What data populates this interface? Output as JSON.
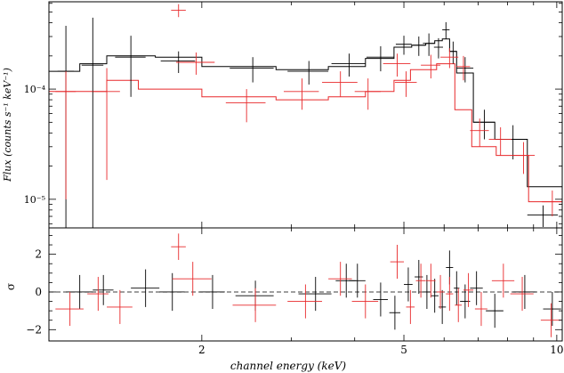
{
  "chart_data": {
    "type": "scatter",
    "x_scale": "log",
    "xlabel": "channel energy (keV)",
    "x_ticks": [
      {
        "value": 2,
        "label": "2"
      },
      {
        "value": 5,
        "label": "5"
      },
      {
        "value": 10,
        "label": "10"
      }
    ],
    "xlim": [
      1.0,
      10.25
    ],
    "panels": [
      {
        "id": "spectrum",
        "y_scale": "log",
        "ylabel": "Flux (counts s⁻¹ keV⁻¹)",
        "ylim": [
          5.5e-06,
          0.00062
        ],
        "y_ticks": [
          {
            "value": 0.0001,
            "label": "10⁻⁴"
          },
          {
            "value": 1e-05,
            "label": "10⁻⁵"
          }
        ],
        "series": [
          {
            "color": "#000000",
            "points": [
              {
                "x": 1.08,
                "y": 0.000145,
                "xerr": 0.04,
                "yerr": [
                  0.00014,
                  0.00023
                ]
              },
              {
                "x": 1.22,
                "y": 0.000165,
                "xerr": 0.06,
                "yerr": [
                  0.00016,
                  0.00028
                ]
              },
              {
                "x": 1.45,
                "y": 0.000195,
                "xerr": 0.1,
                "yerr": [
                  0.00011,
                  0.00011
                ]
              },
              {
                "x": 1.8,
                "y": 0.00018,
                "xerr": 0.14,
                "yerr": [
                  4e-05,
                  4e-05
                ]
              },
              {
                "x": 2.52,
                "y": 0.000155,
                "xerr": 0.25,
                "yerr": [
                  4e-05,
                  4e-05
                ]
              },
              {
                "x": 3.25,
                "y": 0.000145,
                "xerr": 0.3,
                "yerr": [
                  3.5e-05,
                  3.5e-05
                ]
              },
              {
                "x": 3.9,
                "y": 0.00017,
                "xerr": 0.3,
                "yerr": [
                  4e-05,
                  4e-05
                ]
              },
              {
                "x": 4.5,
                "y": 0.000195,
                "xerr": 0.28,
                "yerr": [
                  5e-05,
                  5e-05
                ]
              },
              {
                "x": 5.0,
                "y": 0.000255,
                "xerr": 0.18,
                "yerr": [
                  5e-05,
                  5e-05
                ]
              },
              {
                "x": 5.35,
                "y": 0.00025,
                "xerr": 0.16,
                "yerr": [
                  5e-05,
                  5e-05
                ]
              },
              {
                "x": 5.6,
                "y": 0.00026,
                "xerr": 0.15,
                "yerr": [
                  6e-05,
                  6e-05
                ]
              },
              {
                "x": 5.85,
                "y": 0.00024,
                "xerr": 0.12,
                "yerr": [
                  5e-05,
                  5e-05
                ]
              },
              {
                "x": 6.05,
                "y": 0.000345,
                "xerr": 0.1,
                "yerr": [
                  6e-05,
                  6e-05
                ]
              },
              {
                "x": 6.25,
                "y": 0.00022,
                "xerr": 0.1,
                "yerr": [
                  5e-05,
                  5e-05
                ]
              },
              {
                "x": 6.6,
                "y": 0.000155,
                "xerr": 0.25,
                "yerr": [
                  4e-05,
                  4e-05
                ]
              },
              {
                "x": 7.2,
                "y": 5e-05,
                "xerr": 0.35,
                "yerr": [
                  1.5e-05,
                  1.5e-05
                ]
              },
              {
                "x": 8.2,
                "y": 3.5e-05,
                "xerr": 0.55,
                "yerr": [
                  1.2e-05,
                  1.2e-05
                ]
              },
              {
                "x": 9.4,
                "y": 7.2e-06,
                "xerr": 0.65,
                "yerr": [
                  1.6e-06,
                  1.6e-06
                ]
              }
            ],
            "model_step": {
              "edges": [
                1.0,
                1.15,
                1.3,
                1.62,
                2.0,
                2.8,
                3.55,
                4.2,
                4.78,
                5.18,
                5.52,
                5.75,
                5.95,
                6.15,
                6.35,
                6.85,
                7.55,
                8.75,
                10.25
              ],
              "values": [
                0.000145,
                0.00017,
                0.0002,
                0.000195,
                0.00016,
                0.00015,
                0.00016,
                0.00019,
                0.00024,
                0.00025,
                0.00026,
                0.000275,
                0.000285,
                0.00022,
                0.00014,
                5e-05,
                3.5e-05,
                1.3e-05
              ]
            }
          },
          {
            "color": "#e8292b",
            "points": [
              {
                "x": 1.08,
                "y": 9.5e-05,
                "xerr": 0.05,
                "yerr": [
                  8.5e-05,
                  5e-05
                ]
              },
              {
                "x": 1.3,
                "y": 9.5e-05,
                "xerr": 0.08,
                "yerr": [
                  8e-05,
                  6e-05
                ]
              },
              {
                "x": 1.8,
                "y": 0.00052,
                "xerr": 0.06,
                "yerr": [
                  7e-05,
                  7e-05
                ]
              },
              {
                "x": 1.95,
                "y": 0.000175,
                "xerr": 0.17,
                "yerr": [
                  4e-05,
                  4e-05
                ]
              },
              {
                "x": 2.45,
                "y": 7.5e-05,
                "xerr": 0.22,
                "yerr": [
                  2.5e-05,
                  2.5e-05
                ]
              },
              {
                "x": 3.15,
                "y": 9.5e-05,
                "xerr": 0.25,
                "yerr": [
                  3e-05,
                  3e-05
                ]
              },
              {
                "x": 3.75,
                "y": 0.000115,
                "xerr": 0.3,
                "yerr": [
                  3e-05,
                  3e-05
                ]
              },
              {
                "x": 4.25,
                "y": 9.5e-05,
                "xerr": 0.25,
                "yerr": [
                  3e-05,
                  3e-05
                ]
              },
              {
                "x": 4.85,
                "y": 0.00017,
                "xerr": 0.3,
                "yerr": [
                  4e-05,
                  4e-05
                ]
              },
              {
                "x": 5.05,
                "y": 0.000115,
                "xerr": 0.25,
                "yerr": [
                  3e-05,
                  3e-05
                ]
              },
              {
                "x": 5.65,
                "y": 0.000165,
                "xerr": 0.25,
                "yerr": [
                  4e-05,
                  4e-05
                ]
              },
              {
                "x": 6.15,
                "y": 0.000195,
                "xerr": 0.25,
                "yerr": [
                  4e-05,
                  4e-05
                ]
              },
              {
                "x": 6.55,
                "y": 0.00016,
                "xerr": 0.2,
                "yerr": [
                  4e-05,
                  4e-05
                ]
              },
              {
                "x": 7.05,
                "y": 4.2e-05,
                "xerr": 0.3,
                "yerr": [
                  1.2e-05,
                  1.2e-05
                ]
              },
              {
                "x": 7.75,
                "y": 3.5e-05,
                "xerr": 0.4,
                "yerr": [
                  1e-05,
                  1e-05
                ]
              },
              {
                "x": 8.6,
                "y": 2.5e-05,
                "xerr": 0.45,
                "yerr": [
                  8e-06,
                  8e-06
                ]
              },
              {
                "x": 9.8,
                "y": 9.5e-06,
                "xerr": 0.45,
                "yerr": [
                  2.5e-06,
                  2.5e-06
                ]
              }
            ],
            "model_step": {
              "edges": [
                1.0,
                1.3,
                1.5,
                2.0,
                2.8,
                3.55,
                4.2,
                4.78,
                5.15,
                5.8,
                6.3,
                6.8,
                7.6,
                8.8,
                10.25
              ],
              "values": [
                9.5e-05,
                0.00012,
                0.0001,
                8.5e-05,
                8e-05,
                8.5e-05,
                9.5e-05,
                0.00012,
                0.00015,
                0.00017,
                6.5e-05,
                3e-05,
                2.5e-05,
                9.5e-06
              ]
            }
          }
        ]
      },
      {
        "id": "residuals",
        "y_scale": "linear",
        "ylabel": "σ",
        "ylim": [
          -2.6,
          3.4
        ],
        "y_ticks": [
          {
            "value": 2,
            "label": "2"
          },
          {
            "value": 0,
            "label": "0"
          },
          {
            "value": -2,
            "label": "−2"
          }
        ],
        "reference_line": 0,
        "series": [
          {
            "color": "#000000",
            "points": [
              {
                "x": 1.15,
                "y": 0.0,
                "xerr": 0.07,
                "yerr": 0.9
              },
              {
                "x": 1.28,
                "y": 0.1,
                "xerr": 0.06,
                "yerr": 0.8
              },
              {
                "x": 1.55,
                "y": 0.2,
                "xerr": 0.1,
                "yerr": 1.0
              },
              {
                "x": 1.75,
                "y": 0.0,
                "xerr": 0.1,
                "yerr": 1.0
              },
              {
                "x": 2.1,
                "y": 0.0,
                "xerr": 0.12,
                "yerr": 0.9
              },
              {
                "x": 2.55,
                "y": -0.2,
                "xerr": 0.22,
                "yerr": 0.8
              },
              {
                "x": 3.35,
                "y": -0.1,
                "xerr": 0.25,
                "yerr": 0.9
              },
              {
                "x": 3.85,
                "y": 0.6,
                "xerr": 0.18,
                "yerr": 0.9
              },
              {
                "x": 4.05,
                "y": 0.6,
                "xerr": 0.15,
                "yerr": 0.9
              },
              {
                "x": 4.5,
                "y": -0.4,
                "xerr": 0.15,
                "yerr": 0.9
              },
              {
                "x": 4.8,
                "y": -1.1,
                "xerr": 0.12,
                "yerr": 0.9
              },
              {
                "x": 5.1,
                "y": 0.4,
                "xerr": 0.1,
                "yerr": 0.9
              },
              {
                "x": 5.35,
                "y": 0.8,
                "xerr": 0.1,
                "yerr": 0.9
              },
              {
                "x": 5.55,
                "y": 0.0,
                "xerr": 0.1,
                "yerr": 0.9
              },
              {
                "x": 5.75,
                "y": -0.2,
                "xerr": 0.1,
                "yerr": 0.9
              },
              {
                "x": 5.95,
                "y": -0.8,
                "xerr": 0.1,
                "yerr": 0.9
              },
              {
                "x": 6.15,
                "y": 1.3,
                "xerr": 0.1,
                "yerr": 0.9
              },
              {
                "x": 6.35,
                "y": 0.2,
                "xerr": 0.08,
                "yerr": 0.9
              },
              {
                "x": 6.6,
                "y": -0.5,
                "xerr": 0.15,
                "yerr": 0.9
              },
              {
                "x": 6.95,
                "y": 0.2,
                "xerr": 0.2,
                "yerr": 0.9
              },
              {
                "x": 7.55,
                "y": -1.0,
                "xerr": 0.3,
                "yerr": 0.9
              },
              {
                "x": 8.65,
                "y": 0.0,
                "xerr": 0.45,
                "yerr": 0.9
              },
              {
                "x": 9.8,
                "y": -0.9,
                "xerr": 0.4,
                "yerr": 0.9
              }
            ]
          },
          {
            "color": "#e8292b",
            "points": [
              {
                "x": 1.1,
                "y": -0.9,
                "xerr": 0.07,
                "yerr": 0.9
              },
              {
                "x": 1.25,
                "y": -0.1,
                "xerr": 0.06,
                "yerr": 0.9
              },
              {
                "x": 1.38,
                "y": -0.8,
                "xerr": 0.08,
                "yerr": 0.9
              },
              {
                "x": 1.8,
                "y": 2.4,
                "xerr": 0.06,
                "yerr": 0.7
              },
              {
                "x": 1.92,
                "y": 0.7,
                "xerr": 0.17,
                "yerr": 0.9
              },
              {
                "x": 2.55,
                "y": -0.7,
                "xerr": 0.25,
                "yerr": 0.9
              },
              {
                "x": 3.2,
                "y": -0.5,
                "xerr": 0.25,
                "yerr": 0.9
              },
              {
                "x": 3.75,
                "y": 0.7,
                "xerr": 0.2,
                "yerr": 0.9
              },
              {
                "x": 4.2,
                "y": -0.5,
                "xerr": 0.25,
                "yerr": 0.9
              },
              {
                "x": 4.85,
                "y": 1.6,
                "xerr": 0.15,
                "yerr": 0.9
              },
              {
                "x": 5.15,
                "y": -0.8,
                "xerr": 0.1,
                "yerr": 0.9
              },
              {
                "x": 5.4,
                "y": 0.6,
                "xerr": 0.12,
                "yerr": 0.9
              },
              {
                "x": 5.65,
                "y": 0.6,
                "xerr": 0.12,
                "yerr": 0.9
              },
              {
                "x": 5.9,
                "y": 0.0,
                "xerr": 0.1,
                "yerr": 0.9
              },
              {
                "x": 6.15,
                "y": -0.1,
                "xerr": 0.1,
                "yerr": 0.9
              },
              {
                "x": 6.4,
                "y": -0.7,
                "xerr": 0.1,
                "yerr": 0.9
              },
              {
                "x": 6.7,
                "y": 0.1,
                "xerr": 0.15,
                "yerr": 0.9
              },
              {
                "x": 7.1,
                "y": -0.9,
                "xerr": 0.2,
                "yerr": 0.9
              },
              {
                "x": 7.85,
                "y": 0.6,
                "xerr": 0.4,
                "yerr": 0.9
              },
              {
                "x": 8.55,
                "y": -0.1,
                "xerr": 0.45,
                "yerr": 0.9
              },
              {
                "x": 9.75,
                "y": -1.5,
                "xerr": 0.45,
                "yerr": 0.9
              }
            ]
          }
        ]
      }
    ]
  }
}
